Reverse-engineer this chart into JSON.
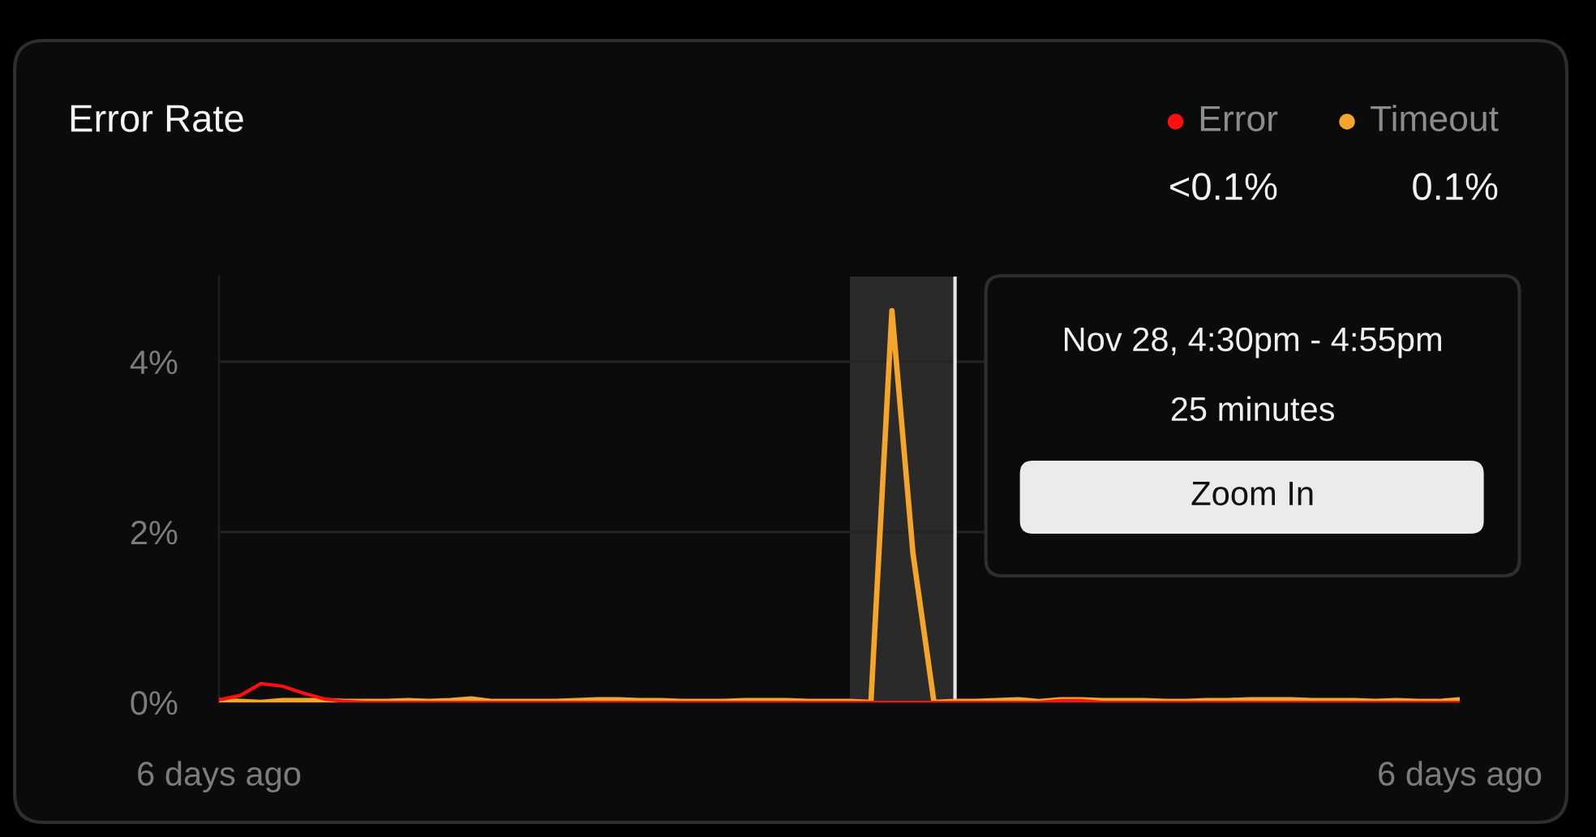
{
  "chart_data": {
    "type": "line",
    "title": "Error Rate",
    "categories": [
      "6 days ago",
      null,
      null,
      null,
      null,
      null,
      null,
      null,
      null,
      null,
      null,
      null,
      null,
      null,
      null,
      null,
      null,
      null,
      null,
      null,
      null,
      null,
      null,
      null,
      null,
      null,
      null,
      null,
      null,
      null,
      null,
      null,
      null,
      null,
      null,
      null,
      null,
      null,
      null,
      null,
      null,
      null,
      null,
      null,
      null,
      null,
      null,
      null,
      null,
      null,
      null,
      null,
      null,
      null,
      null,
      null,
      null,
      null,
      null,
      "6 days ago"
    ],
    "series": [
      {
        "name": "Error",
        "color": "#ff1010",
        "values": [
          0.03,
          0.08,
          0.22,
          0.19,
          0.11,
          0.04,
          0.01,
          0,
          0,
          0,
          0,
          0,
          0,
          0,
          0,
          0,
          0,
          0,
          0,
          0,
          0,
          0,
          0,
          0,
          0,
          0,
          0,
          0,
          0,
          0,
          0,
          0,
          0,
          0,
          0,
          0,
          0,
          0,
          0,
          0,
          0.02,
          0.02,
          0,
          0,
          0,
          0,
          0,
          0,
          0,
          0,
          0,
          0,
          0,
          0,
          0,
          0,
          0,
          0,
          0,
          0
        ]
      },
      {
        "name": "Timeout",
        "color": "#f5a52a",
        "values": [
          0.02,
          0.01,
          0,
          0.02,
          0.02,
          0.02,
          0.01,
          0.01,
          0.01,
          0.02,
          0.01,
          0.02,
          0.04,
          0.01,
          0.01,
          0.01,
          0.01,
          0.02,
          0.03,
          0.03,
          0.02,
          0.02,
          0.01,
          0.01,
          0.01,
          0.02,
          0.02,
          0.02,
          0.01,
          0.01,
          0.01,
          0,
          4.6,
          1.75,
          0,
          0.01,
          0.01,
          0.02,
          0.03,
          0.01,
          0.03,
          0.03,
          0.02,
          0.02,
          0.02,
          0.01,
          0.01,
          0.02,
          0.02,
          0.03,
          0.03,
          0.03,
          0.02,
          0.02,
          0.02,
          0.01,
          0.02,
          0.01,
          0.01,
          0.03
        ]
      }
    ],
    "ylim": [
      0,
      5
    ],
    "yticks": [
      {
        "value": 0,
        "label": "0%"
      },
      {
        "value": 2,
        "label": "2%"
      },
      {
        "value": 4,
        "label": "4%"
      }
    ],
    "grid": "y",
    "legend": "top right",
    "annotations": [
      "<0.1%",
      "0.1%",
      "Nov 28, 4:30pm - 4:55pm",
      "25 minutes",
      "Zoom In"
    ]
  }
}
